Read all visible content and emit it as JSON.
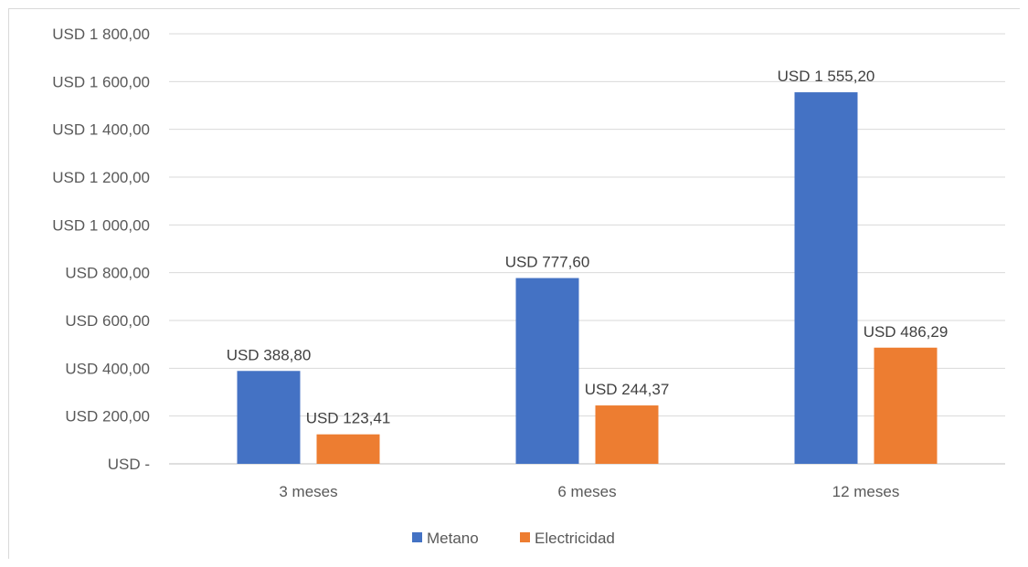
{
  "chart_data": {
    "type": "bar",
    "categories": [
      "3 meses",
      "6 meses",
      "12 meses"
    ],
    "series": [
      {
        "name": "Metano",
        "color": "#4472C4",
        "values": [
          388.8,
          777.6,
          1555.2
        ],
        "labels": [
          "USD 388,80",
          "USD 777,60",
          "USD 1 555,20"
        ]
      },
      {
        "name": "Electricidad",
        "color": "#ED7D31",
        "values": [
          123.41,
          244.37,
          486.29
        ],
        "labels": [
          "USD 123,41",
          "USD 244,37",
          "USD 486,29"
        ]
      }
    ],
    "ylim": [
      0,
      1800
    ],
    "yticks": [
      0,
      200,
      400,
      600,
      800,
      1000,
      1200,
      1400,
      1600,
      1800
    ],
    "ytick_labels": [
      "USD -",
      "USD 200,00",
      "USD 400,00",
      "USD 600,00",
      "USD 800,00",
      "USD 1 000,00",
      "USD 1 200,00",
      "USD 1 400,00",
      "USD 1 600,00",
      "USD 1 800,00"
    ],
    "grid": true,
    "legend_position": "bottom",
    "title": "",
    "xlabel": "",
    "ylabel": ""
  }
}
